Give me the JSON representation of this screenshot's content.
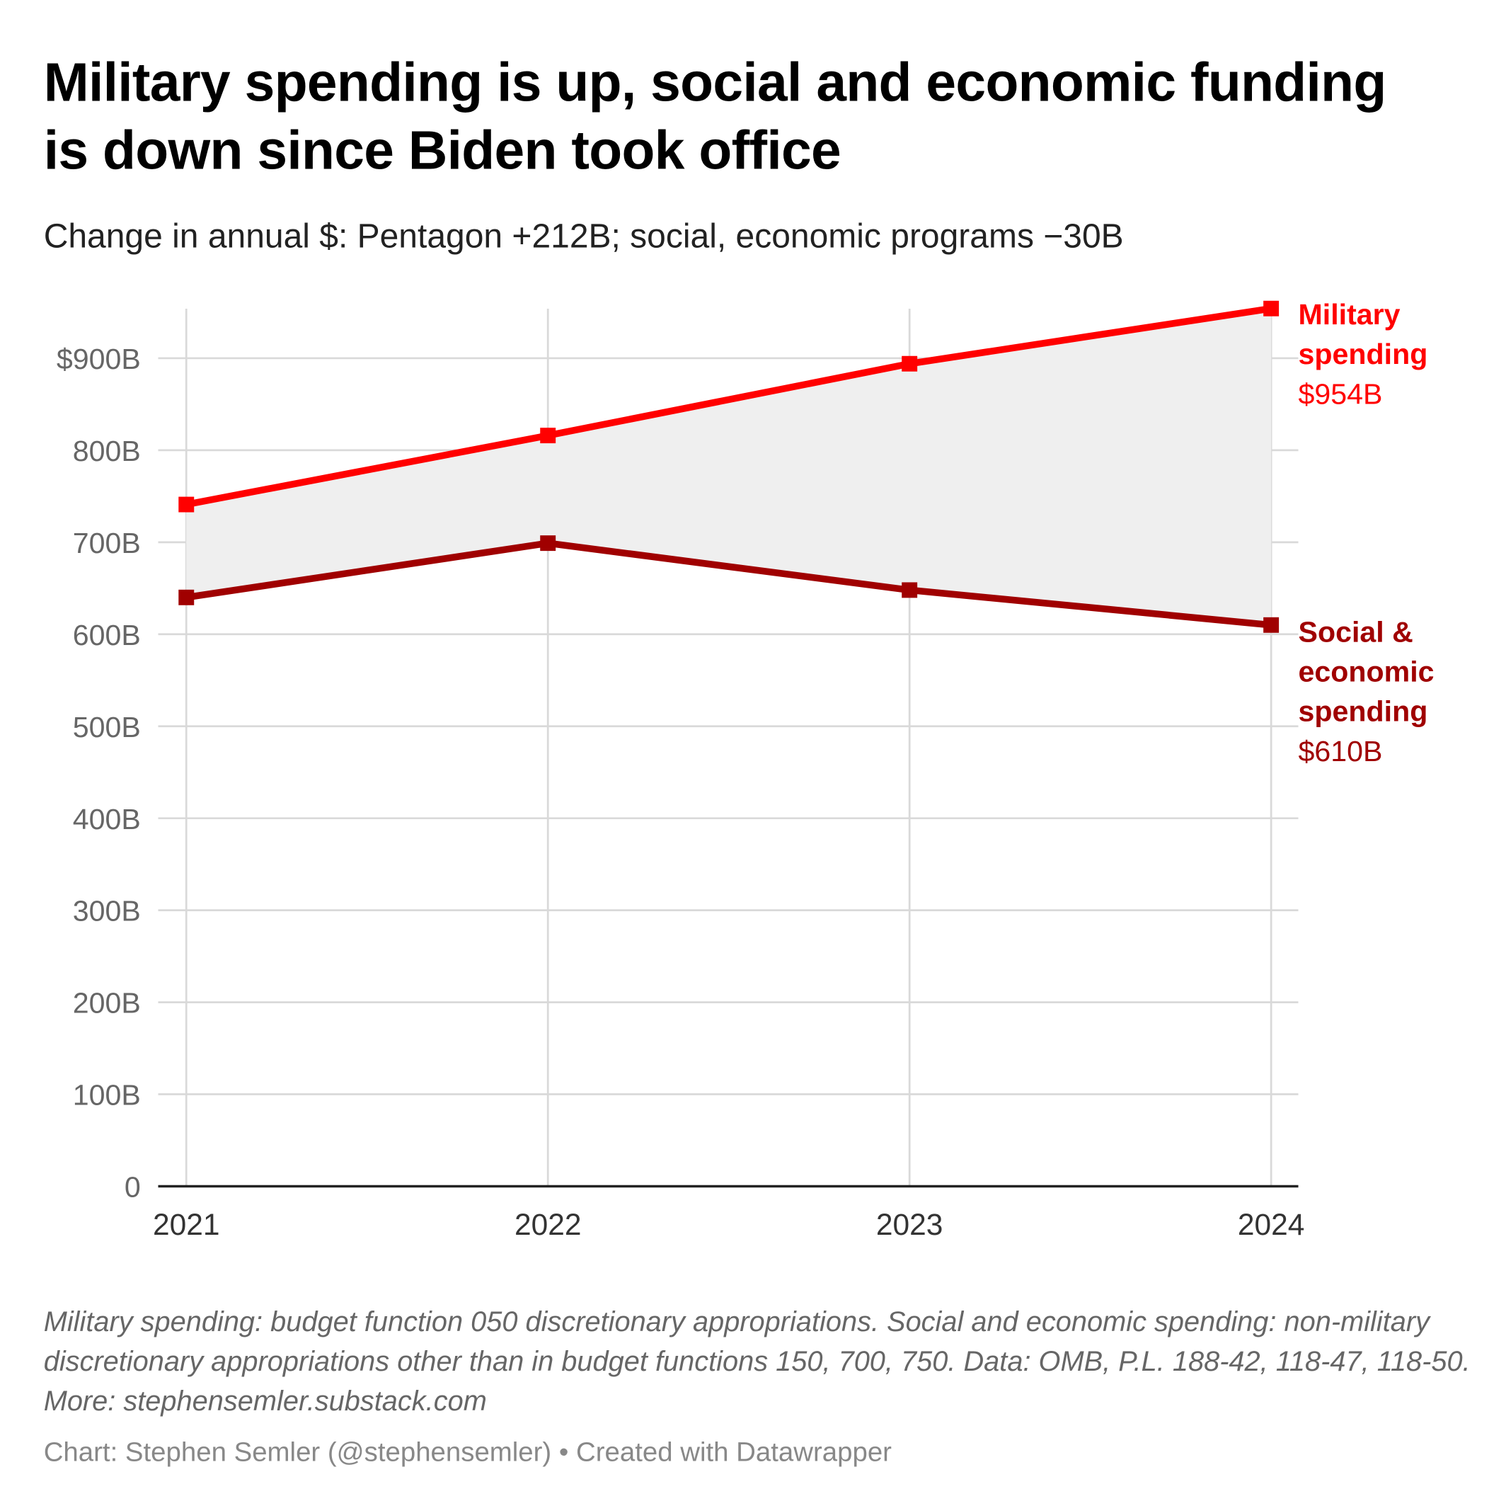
{
  "title": "Military spending is up, social and economic funding is down since Biden took office",
  "subtitle": "Change in annual $: Pentagon +212B; social, economic programs −30B",
  "notes": "Military spending: budget function 050 discretionary appropriations. Social and economic spending: non-military discretionary appropriations other than in budget functions 150, 700, 750. Data: OMB, P.L. 188-42, 118-47, 118-50. More: stephensemler.substack.com",
  "byline": "Chart: Stephen Semler (@stephensemler) • Created with Datawrapper",
  "labels": {
    "military_name": "Military spending",
    "military_value": "$954B",
    "social_name": "Social & economic spending",
    "social_value": "$610B"
  },
  "chart_data": {
    "type": "line",
    "title": "Military spending is up, social and economic funding is down since Biden took office",
    "x": [
      "2021",
      "2022",
      "2023",
      "2024"
    ],
    "ylim": [
      0,
      950
    ],
    "yticks": [
      0,
      100,
      200,
      300,
      400,
      500,
      600,
      700,
      800,
      900
    ],
    "ytick_labels": [
      "0",
      "100B",
      "200B",
      "300B",
      "400B",
      "500B",
      "600B",
      "700B",
      "800B",
      "$900B"
    ],
    "grid": true,
    "series": [
      {
        "name": "Military spending",
        "color": "#ff0000",
        "values": [
          741,
          816,
          894,
          954
        ]
      },
      {
        "name": "Social & economic spending",
        "color": "#a00000",
        "values": [
          640,
          699,
          648,
          610
        ]
      }
    ],
    "fill_between_color": "#efefef"
  }
}
